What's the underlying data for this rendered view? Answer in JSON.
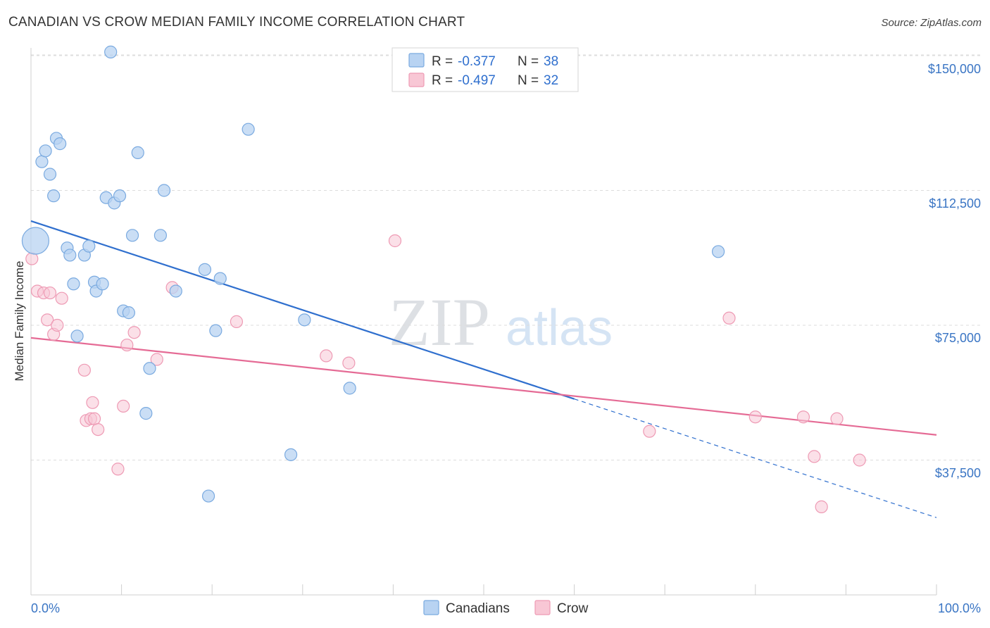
{
  "title": "CANADIAN VS CROW MEDIAN FAMILY INCOME CORRELATION CHART",
  "source": "Source: ZipAtlas.com",
  "colors": {
    "canadians_fill": "#b8d3f2",
    "canadians_stroke": "#7aaae0",
    "canadians_line": "#2f6fce",
    "crow_fill": "#f8c7d5",
    "crow_stroke": "#ee9ab4",
    "crow_line": "#e56b95",
    "axis_text": "#3a75c4",
    "grid": "#dddddd"
  },
  "stats_legend": {
    "r_label": "R =",
    "n_label": "N =",
    "canadians": {
      "r": "-0.377",
      "n": "38"
    },
    "crow": {
      "r": "-0.497",
      "n": "32"
    }
  },
  "watermark": {
    "zip": "ZIP",
    "atlas": "atlas"
  },
  "chart_data": {
    "type": "scatter",
    "title": "CANADIAN VS CROW MEDIAN FAMILY INCOME CORRELATION CHART",
    "xlabel": "",
    "ylabel": "Median Family Income",
    "xlim": [
      0,
      100
    ],
    "ylim": [
      0,
      153000
    ],
    "x_tick_labels": [
      "0.0%",
      "100.0%"
    ],
    "y_ticks": [
      37500,
      75000,
      112500,
      150000
    ],
    "y_tick_labels": [
      "$37,500",
      "$75,000",
      "$112,500",
      "$150,000"
    ],
    "legend_position": "bottom-center",
    "series": [
      {
        "name": "Canadians",
        "points": [
          [
            0.5,
            98500
          ],
          [
            1.2,
            120500
          ],
          [
            1.6,
            123500
          ],
          [
            2.1,
            117000
          ],
          [
            2.5,
            111000
          ],
          [
            2.8,
            127000
          ],
          [
            3.2,
            125500
          ],
          [
            4.0,
            96500
          ],
          [
            4.3,
            94500
          ],
          [
            4.7,
            86500
          ],
          [
            5.1,
            72000
          ],
          [
            5.9,
            94500
          ],
          [
            6.4,
            97000
          ],
          [
            7.0,
            87000
          ],
          [
            7.2,
            84500
          ],
          [
            7.9,
            86500
          ],
          [
            8.3,
            110500
          ],
          [
            8.8,
            151000
          ],
          [
            9.2,
            109000
          ],
          [
            9.8,
            111000
          ],
          [
            10.2,
            79000
          ],
          [
            10.8,
            78500
          ],
          [
            11.2,
            100000
          ],
          [
            11.8,
            123000
          ],
          [
            12.7,
            50500
          ],
          [
            13.1,
            63000
          ],
          [
            14.3,
            100000
          ],
          [
            14.7,
            112500
          ],
          [
            16.0,
            84500
          ],
          [
            19.2,
            90500
          ],
          [
            19.6,
            27500
          ],
          [
            20.4,
            73500
          ],
          [
            20.9,
            88000
          ],
          [
            24.0,
            129500
          ],
          [
            28.7,
            39000
          ],
          [
            30.2,
            76500
          ],
          [
            35.2,
            57500
          ],
          [
            75.9,
            95500
          ]
        ]
      },
      {
        "name": "Crow",
        "points": [
          [
            0.1,
            93500
          ],
          [
            0.7,
            84500
          ],
          [
            1.4,
            84000
          ],
          [
            1.8,
            76500
          ],
          [
            2.1,
            84000
          ],
          [
            2.5,
            72500
          ],
          [
            2.9,
            75000
          ],
          [
            3.4,
            82500
          ],
          [
            5.9,
            62500
          ],
          [
            6.1,
            48500
          ],
          [
            6.6,
            49000
          ],
          [
            6.8,
            53500
          ],
          [
            7.0,
            49000
          ],
          [
            7.4,
            46000
          ],
          [
            9.6,
            35000
          ],
          [
            10.2,
            52500
          ],
          [
            10.6,
            69500
          ],
          [
            11.4,
            73000
          ],
          [
            13.9,
            65500
          ],
          [
            15.6,
            85500
          ],
          [
            22.7,
            76000
          ],
          [
            32.6,
            66500
          ],
          [
            35.1,
            64500
          ],
          [
            40.2,
            98500
          ],
          [
            68.3,
            45500
          ],
          [
            77.1,
            77000
          ],
          [
            80.0,
            49500
          ],
          [
            85.3,
            49500
          ],
          [
            86.5,
            38500
          ],
          [
            87.3,
            24500
          ],
          [
            89.0,
            49000
          ],
          [
            91.5,
            37500
          ]
        ]
      }
    ],
    "trend_lines": [
      {
        "series": "Canadians",
        "x_start": 0,
        "y_start": 104000,
        "x_solid_end": 60,
        "x_end": 100,
        "y_end": 21500
      },
      {
        "series": "Crow",
        "x_start": 0,
        "y_start": 71500,
        "x_end": 100,
        "y_end": 44500
      }
    ]
  },
  "bottom_legend": {
    "canadians": "Canadians",
    "crow": "Crow"
  }
}
